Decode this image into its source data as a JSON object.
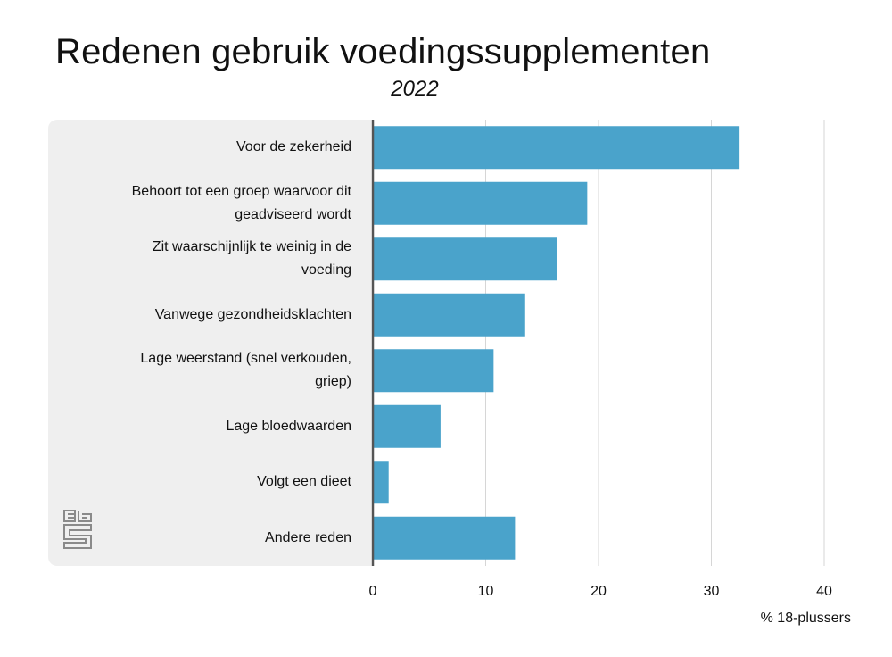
{
  "chart_data": {
    "type": "bar",
    "orientation": "horizontal",
    "title": "Redenen gebruik voedingssupplementen",
    "subtitle": "2022",
    "xlabel": "% 18-plussers",
    "ylabel": "",
    "xlim": [
      0,
      40
    ],
    "xticks": [
      "0",
      "10",
      "20",
      "30",
      "40"
    ],
    "grid": true,
    "bar_color": "#4aa3cb",
    "categories": [
      [
        "Voor de zekerheid"
      ],
      [
        "Behoort tot een groep waarvoor dit",
        "geadviseerd wordt"
      ],
      [
        "Zit waarschijnlijk te weinig in de",
        "voeding"
      ],
      [
        "Vanwege gezondheidsklachten"
      ],
      [
        "Lage weerstand (snel verkouden,",
        "griep)"
      ],
      [
        "Lage bloedwaarden"
      ],
      [
        "Volgt een dieet"
      ],
      [
        "Andere reden"
      ]
    ],
    "values": [
      32.5,
      19.0,
      16.3,
      13.5,
      10.7,
      6.0,
      1.4,
      12.6
    ]
  },
  "colors": {
    "bar": "#4aa3cb",
    "panel": "#efefef",
    "grid": "#d6d6d6",
    "axis": "#555555"
  },
  "logo": {
    "icon": "cbs-logo-icon"
  }
}
